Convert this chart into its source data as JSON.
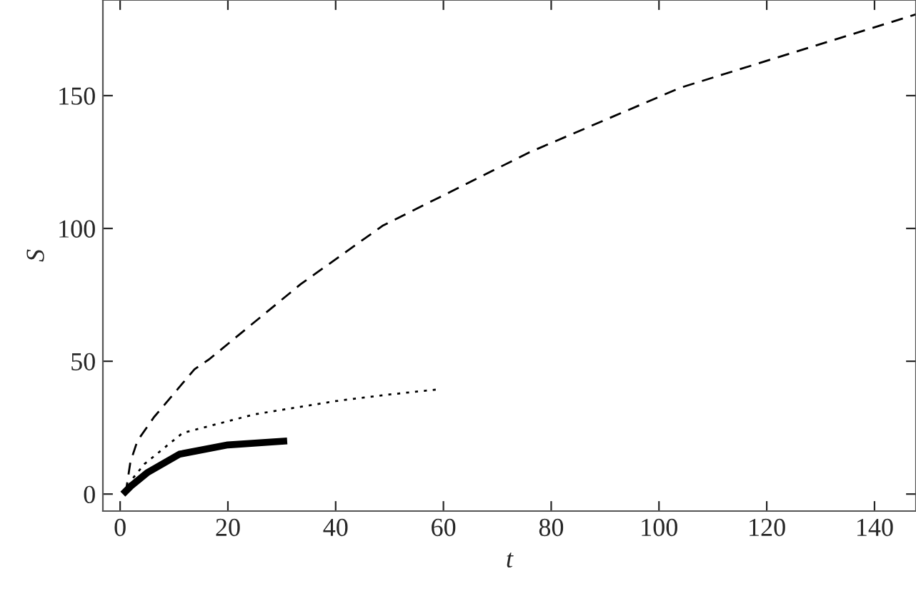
{
  "chart_data": {
    "type": "line",
    "xlabel": "t",
    "ylabel": "S",
    "xlim": [
      -3.2,
      147.7
    ],
    "ylim": [
      -6.4,
      186
    ],
    "xticks": [
      0,
      20,
      40,
      60,
      80,
      100,
      120,
      140
    ],
    "yticks": [
      0,
      50,
      100,
      150
    ],
    "grid": false,
    "series": [
      {
        "color": "#000000",
        "line_style": "dashed",
        "x": [
          1,
          1.9,
          3.2,
          6.3,
          13.8,
          16.5,
          33.5,
          48.7,
          76,
          104,
          147.7
        ],
        "values": [
          0,
          12,
          20,
          29,
          47,
          50.7,
          79,
          101,
          128.7,
          153,
          180.6
        ]
      },
      {
        "color": "#000000",
        "line_style": "dotted",
        "x": [
          1,
          2,
          4.5,
          11.6,
          24.9,
          40,
          50,
          59
        ],
        "values": [
          0,
          5,
          11.3,
          23,
          30,
          35,
          37.5,
          39.4
        ]
      },
      {
        "color": "#000000",
        "line_style": "solid",
        "x": [
          0.5,
          2,
          5,
          11,
          20,
          31
        ],
        "values": [
          0,
          3,
          8,
          15,
          18.5,
          20
        ]
      }
    ]
  }
}
